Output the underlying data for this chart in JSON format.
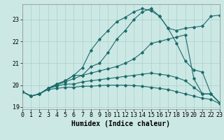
{
  "xlabel": "Humidex (Indice chaleur)",
  "bg_color": "#cce8e4",
  "grid_color": "#aacfcc",
  "line_color": "#1a6b6b",
  "xlim": [
    0,
    23
  ],
  "ylim": [
    18.9,
    23.7
  ],
  "xticks": [
    0,
    1,
    2,
    3,
    4,
    5,
    6,
    7,
    8,
    9,
    10,
    11,
    12,
    13,
    14,
    15,
    16,
    17,
    18,
    19,
    20,
    21,
    22,
    23
  ],
  "yticks": [
    19,
    20,
    21,
    22,
    23
  ],
  "series": [
    [
      19.7,
      19.5,
      19.6,
      19.85,
      20.05,
      20.2,
      20.45,
      20.8,
      21.6,
      22.1,
      22.5,
      22.9,
      23.1,
      23.35,
      23.5,
      23.4,
      23.15,
      22.6,
      22.5,
      22.6,
      22.65,
      22.7,
      23.15,
      23.2
    ],
    [
      19.7,
      19.5,
      19.6,
      19.85,
      20.05,
      20.2,
      20.45,
      20.45,
      20.85,
      21.0,
      21.5,
      22.1,
      22.5,
      23.0,
      23.35,
      23.5,
      23.15,
      22.6,
      21.9,
      21.1,
      20.7,
      20.6,
      19.6,
      19.2
    ],
    [
      19.7,
      19.5,
      19.6,
      19.85,
      20.0,
      20.15,
      20.3,
      20.45,
      20.55,
      20.65,
      20.75,
      20.85,
      21.0,
      21.2,
      21.5,
      21.9,
      22.0,
      22.1,
      22.2,
      22.3,
      20.3,
      19.6,
      19.6,
      19.2
    ],
    [
      19.7,
      19.5,
      19.6,
      19.85,
      19.95,
      20.05,
      20.05,
      20.15,
      20.2,
      20.25,
      20.3,
      20.35,
      20.4,
      20.45,
      20.5,
      20.55,
      20.5,
      20.45,
      20.35,
      20.2,
      19.9,
      19.6,
      19.6,
      19.2
    ],
    [
      19.7,
      19.5,
      19.6,
      19.8,
      19.85,
      19.9,
      19.9,
      19.95,
      19.95,
      19.98,
      20.0,
      20.0,
      20.0,
      19.98,
      19.95,
      19.9,
      19.85,
      19.8,
      19.7,
      19.6,
      19.5,
      19.4,
      19.35,
      19.15
    ]
  ],
  "marker": "D",
  "marker_size": 1.8,
  "linewidth": 0.8,
  "xlabel_fontsize": 7,
  "tick_fontsize": 6
}
